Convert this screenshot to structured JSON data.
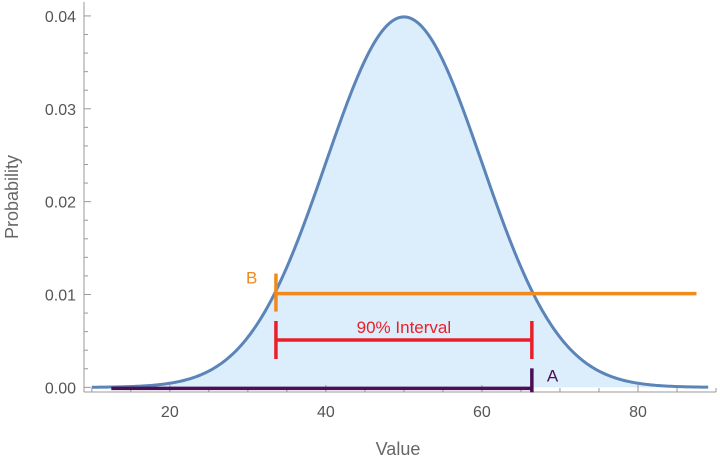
{
  "chart_data": {
    "type": "area",
    "title": "",
    "xlabel": "Value",
    "ylabel": "Probability",
    "xlim": [
      9,
      90
    ],
    "ylim": [
      -0.0005,
      0.0415
    ],
    "x_ticks": [
      20,
      40,
      60,
      80
    ],
    "y_ticks": [
      0.0,
      0.01,
      0.02,
      0.03,
      0.04
    ],
    "x_tick_labels": [
      "20",
      "40",
      "60",
      "80"
    ],
    "y_tick_labels": [
      "0.00",
      "0.01",
      "0.02",
      "0.03",
      "0.04"
    ],
    "distribution": {
      "mean": 50,
      "sd": 10
    },
    "curve_range": [
      10,
      89
    ],
    "grid": false,
    "colors": {
      "curve": "#5b84b8",
      "fill": "#dcedfb",
      "axis": "#999999",
      "A": "#4b0f55",
      "B": "#f08a1d",
      "interval": "#e8202a"
    },
    "annotations": {
      "A": {
        "label": "A",
        "x_start": 12.5,
        "x_end": 66.4,
        "y": 0.0
      },
      "B": {
        "label": "B",
        "x_start": 33.6,
        "x_end": 87.5,
        "y": 0.0101
      },
      "interval": {
        "label": "90% Interval",
        "x_start": 33.6,
        "x_end": 66.4,
        "y": 0.0051
      }
    }
  }
}
